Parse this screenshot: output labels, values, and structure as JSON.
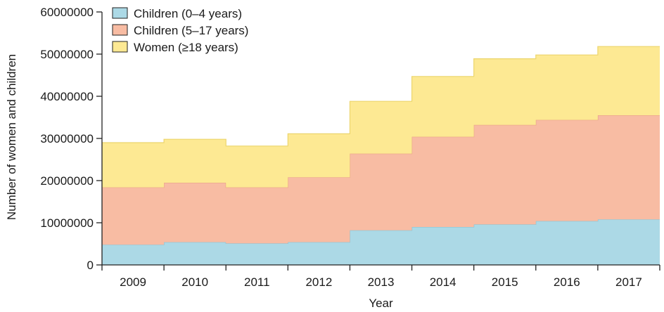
{
  "chart_data": {
    "type": "area",
    "step": true,
    "stacked": true,
    "categories": [
      "2009",
      "2010",
      "2011",
      "2012",
      "2013",
      "2014",
      "2015",
      "2016",
      "2017"
    ],
    "series": [
      {
        "name": "Children (0–4 years)",
        "color": "#acd9e6",
        "edge": "#8ec4d4",
        "values": [
          4800000,
          5400000,
          5100000,
          5400000,
          8200000,
          9000000,
          9600000,
          10400000,
          10800000
        ]
      },
      {
        "name": "Children (5–17 years)",
        "color": "#f8bca3",
        "edge": "#e9a488",
        "values": [
          13600000,
          14100000,
          13300000,
          15400000,
          18200000,
          21400000,
          23600000,
          24000000,
          24700000
        ]
      },
      {
        "name": "Women (≥18 years)",
        "color": "#fde993",
        "edge": "#ecd56d",
        "values": [
          10600000,
          10300000,
          9800000,
          10300000,
          12400000,
          14300000,
          15700000,
          15400000,
          16300000
        ]
      }
    ],
    "ylim": [
      0,
      60000000
    ],
    "yticks": [
      0,
      10000000,
      20000000,
      30000000,
      40000000,
      50000000,
      60000000
    ],
    "ytick_labels": [
      "0",
      "10000000",
      "20000000",
      "30000000",
      "40000000",
      "50000000",
      "60000000"
    ],
    "xlabel": "Year",
    "ylabel": "Number of women and children",
    "legend": "top-left",
    "grid": false
  }
}
